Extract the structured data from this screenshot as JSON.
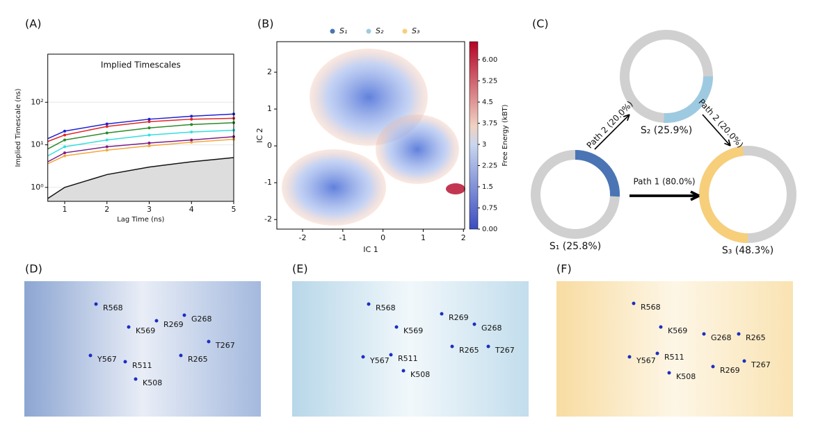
{
  "panel_labels": [
    "(A)",
    "(B)",
    "(C)",
    "(D)",
    "(E)",
    "(F)"
  ],
  "chart_data": [
    {
      "type": "line",
      "title": "Implied Timescales",
      "xlabel": "Lag Time (ns)",
      "ylabel": "Implied Timescale (ns)",
      "log_y": true,
      "grid": true,
      "x": [
        0.6,
        1,
        2,
        3,
        4,
        5
      ],
      "xlim": [
        0.6,
        5
      ],
      "xticks": [
        1,
        2,
        3,
        4,
        5
      ],
      "ylim": [
        0.47,
        1350
      ],
      "yticks": [
        {
          "value": 1,
          "label": "10⁰"
        },
        {
          "value": 10,
          "label": "10¹"
        },
        {
          "value": 100,
          "label": "10²"
        }
      ],
      "series": [
        {
          "color": "#111111",
          "fill": "#dddddd",
          "values": [
            0.55,
            1.0,
            2.0,
            3.0,
            4.0,
            5.0
          ]
        },
        {
          "color": "#f4a63a",
          "values": [
            3.6,
            5.5,
            7.5,
            9.5,
            11.5,
            13.5
          ]
        },
        {
          "color": "#7a1f8a",
          "values": [
            4.0,
            6.5,
            9.0,
            11.0,
            13.0,
            15.5
          ]
        },
        {
          "color": "#33dede",
          "values": [
            5.5,
            9.0,
            13.0,
            17.0,
            20.0,
            22.0
          ]
        },
        {
          "color": "#2a8a2a",
          "values": [
            8.0,
            13.0,
            19.0,
            25.0,
            30.0,
            33.0
          ]
        },
        {
          "color": "#e02525",
          "values": [
            12.0,
            17.0,
            27.0,
            35.0,
            40.0,
            42.0
          ]
        },
        {
          "color": "#1f1fd6",
          "values": [
            14.0,
            21.0,
            31.0,
            40.0,
            47.0,
            53.0
          ]
        }
      ]
    },
    {
      "type": "heatmap",
      "xlabel": "IC 1",
      "ylabel": "IC 2",
      "colorbar_label": "Free Energy (kBT)",
      "xlim": [
        -2.64,
        2.03
      ],
      "xticks": [
        -2,
        -1,
        0,
        1,
        2
      ],
      "ylim": [
        -2.26,
        2.83
      ],
      "yticks": [
        -2,
        -1,
        0,
        1,
        2
      ],
      "clim": [
        0,
        6.64
      ],
      "cticks": [
        {
          "value": 0,
          "label": "0.00"
        },
        0.75,
        1.5,
        2.25,
        3,
        3.75,
        4.5,
        5.25,
        {
          "value": 6,
          "label": "6.00"
        }
      ],
      "legend": [
        {
          "name": "S₁",
          "color": "#4a74b4"
        },
        {
          "name": "S₂",
          "color": "#9ecae1"
        },
        {
          "name": "S₃",
          "color": "#f7cf7a"
        }
      ]
    },
    {
      "type": "network",
      "nodes": [
        {
          "name": "S₁",
          "value": 25.8,
          "label": "S₁ (25.8%)",
          "color": "#4a74b4"
        },
        {
          "name": "S₂",
          "value": 25.9,
          "label": "S₂ (25.9%)",
          "color": "#9ecae1"
        },
        {
          "name": "S₃",
          "value": 48.3,
          "label": "S₃ (48.3%)",
          "color": "#f7cf7a"
        }
      ],
      "edges": [
        {
          "label": "Path 2 (20.0%)",
          "value": 20.0
        },
        {
          "label": "Path 2 (20.0%)",
          "value": 20.0
        },
        {
          "label": "Path 1 (80.0%)",
          "value": 80.0
        }
      ]
    }
  ],
  "structures": [
    {
      "residues": [
        "R568",
        "K569",
        "R269",
        "G268",
        "T267",
        "Y567",
        "R511",
        "R265",
        "K508"
      ]
    },
    {
      "residues": [
        "R568",
        "K569",
        "R269",
        "G268",
        "Y567",
        "R511",
        "R265",
        "T267",
        "K508"
      ]
    },
    {
      "residues": [
        "R568",
        "K569",
        "G268",
        "R265",
        "Y567",
        "R511",
        "T267",
        "K508",
        "R269"
      ]
    }
  ]
}
